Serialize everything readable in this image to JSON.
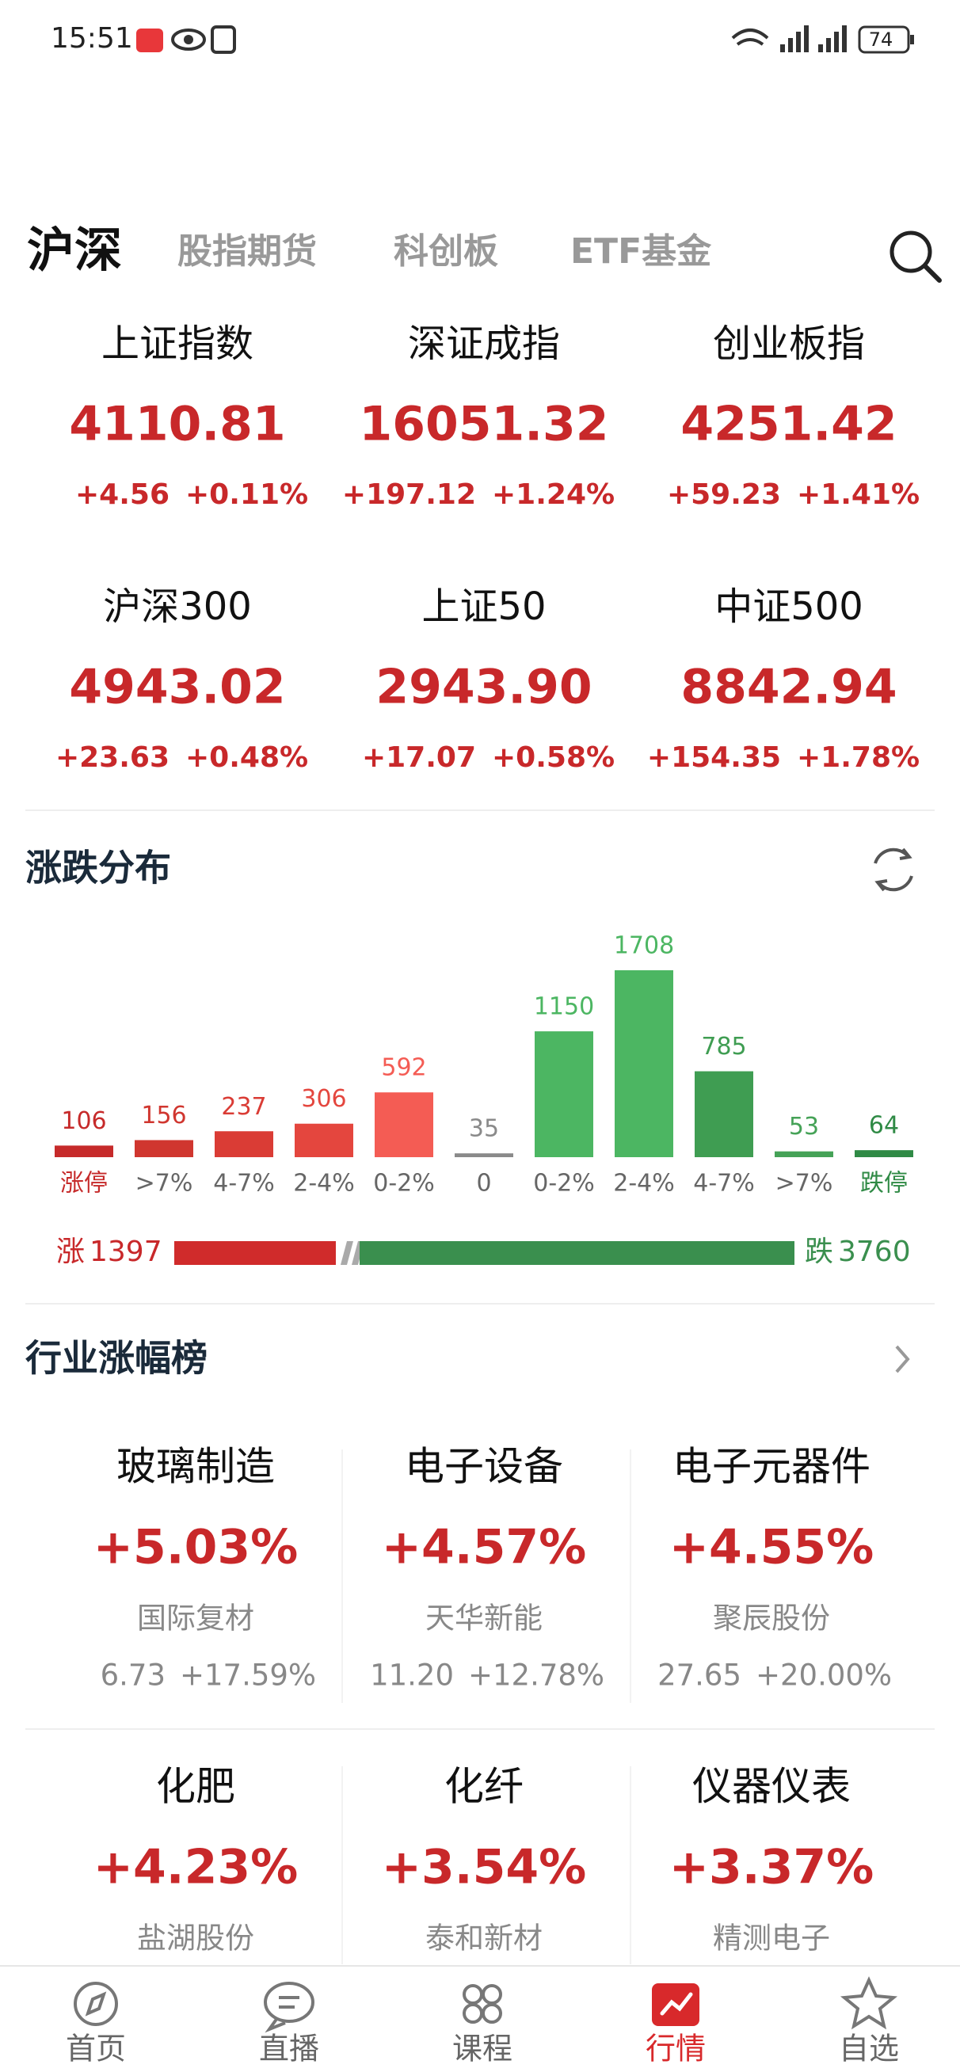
{
  "status_bar": {
    "time": "15:51",
    "battery": 74
  },
  "tabs": [
    "沪深",
    "股指期货",
    "科创板",
    "ETF基金"
  ],
  "indices": [
    {
      "name": "上证指数",
      "value": "4110.81",
      "change": "+4.56",
      "change_pct": "+0.11%"
    },
    {
      "name": "深证成指",
      "value": "16051.32",
      "change": "+197.12",
      "change_pct": "+1.24%"
    },
    {
      "name": "创业板指",
      "value": "4251.42",
      "change": "+59.23",
      "change_pct": "+1.41%"
    },
    {
      "name": "沪深300",
      "value": "4943.02",
      "change": "+23.63",
      "change_pct": "+0.48%"
    },
    {
      "name": "上证50",
      "value": "2943.90",
      "change": "+17.07",
      "change_pct": "+0.58%"
    },
    {
      "name": "中证500",
      "value": "8842.94",
      "change": "+154.35",
      "change_pct": "+1.78%"
    }
  ],
  "distribution": {
    "title": "涨跌分布",
    "categories": [
      "涨停",
      ">7%",
      "4-7%",
      "2-4%",
      "0-2%",
      "0",
      "0-2%",
      "2-4%",
      "4-7%",
      ">7%",
      "跌停"
    ],
    "values": [
      106,
      156,
      237,
      306,
      592,
      35,
      1150,
      1708,
      785,
      53,
      64
    ],
    "colors": [
      "#c62a2a",
      "#d0362f",
      "#da3c35",
      "#e4463e",
      "#f45c54",
      "#8a8a8a",
      "#4cb662",
      "#4cb662",
      "#3f9d52",
      "#45a257",
      "#2f8a45"
    ],
    "up_label": "涨",
    "up_count": 1397,
    "down_label": "跌",
    "down_count": 3760
  },
  "industry": {
    "title": "行业涨幅榜",
    "items": [
      {
        "name": "玻璃制造",
        "change": "+5.03%",
        "stock": "国际复材",
        "stock_price": "6.73",
        "stock_change": "+17.59%"
      },
      {
        "name": "电子设备",
        "change": "+4.57%",
        "stock": "天华新能",
        "stock_price": "11.20",
        "stock_change": "+12.78%"
      },
      {
        "name": "电子元器件",
        "change": "+4.55%",
        "stock": "聚辰股份",
        "stock_price": "27.65",
        "stock_change": "+20.00%"
      },
      {
        "name": "化肥",
        "change": "+4.23%",
        "stock": "盐湖股份"
      },
      {
        "name": "化纤",
        "change": "+3.54%",
        "stock": "泰和新材"
      },
      {
        "name": "仪器仪表",
        "change": "+3.37%",
        "stock": "精测电子"
      }
    ]
  },
  "nav": [
    "首页",
    "直播",
    "课程",
    "行情",
    "自选"
  ]
}
